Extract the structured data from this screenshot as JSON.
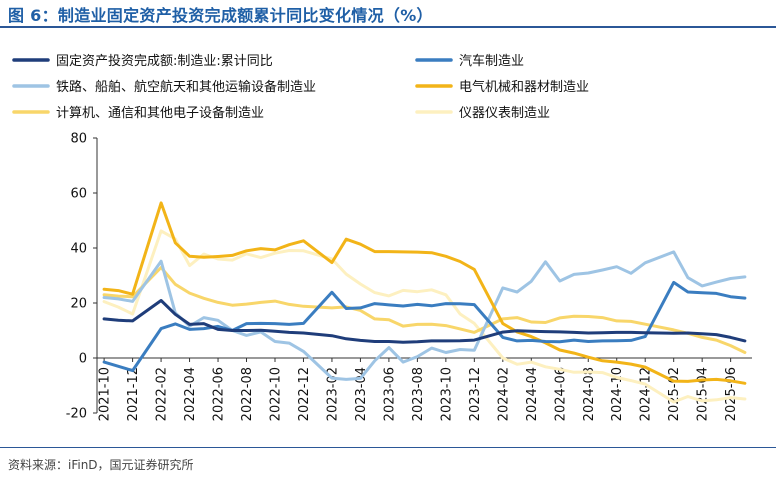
{
  "figure": {
    "title": "图 6：制造业固定资产投资完成额累计同比变化情况（%）",
    "source": "资料来源：iFinD，国元证券研究所"
  },
  "chart_data": {
    "type": "line",
    "ylim": [
      -20,
      80
    ],
    "yticks": [
      -20,
      0,
      20,
      40,
      60,
      80
    ],
    "xlabel": "",
    "ylabel": "",
    "grid": false,
    "legend_position": "top",
    "x_tick_labels": [
      "2021-10",
      "2021-12",
      "2022-02",
      "2022-04",
      "2022-06",
      "2022-08",
      "2022-10",
      "2022-12",
      "2023-02",
      "2023-04",
      "2023-06",
      "2023-08",
      "2023-10",
      "2023-12",
      "2024-02",
      "2024-04",
      "2024-06",
      "2024-08",
      "2024-10",
      "2024-12",
      "2025-02",
      "2025-04",
      "2025-06"
    ],
    "x": [
      "2021-10",
      "2021-11",
      "2021-12",
      "2022-01",
      "2022-02",
      "2022-03",
      "2022-04",
      "2022-05",
      "2022-06",
      "2022-07",
      "2022-08",
      "2022-09",
      "2022-10",
      "2022-11",
      "2022-12",
      "2023-01",
      "2023-02",
      "2023-03",
      "2023-04",
      "2023-05",
      "2023-06",
      "2023-07",
      "2023-08",
      "2023-09",
      "2023-10",
      "2023-11",
      "2023-12",
      "2024-01",
      "2024-02",
      "2024-03",
      "2024-04",
      "2024-05",
      "2024-06",
      "2024-07",
      "2024-08",
      "2024-09",
      "2024-10",
      "2024-11",
      "2024-12",
      "2025-01",
      "2025-02",
      "2025-03",
      "2025-04",
      "2025-05",
      "2025-06",
      "2025-07"
    ],
    "series": [
      {
        "name": "固定资产投资完成额:制造业:累计同比",
        "color": "#1f3d7a",
        "values": [
          14.2,
          13.7,
          13.5,
          null,
          20.9,
          15.9,
          12.2,
          12.5,
          10.4,
          10.0,
          10.0,
          10.1,
          9.7,
          9.3,
          9.1,
          null,
          8.1,
          7.0,
          6.4,
          6.0,
          6.0,
          5.7,
          5.9,
          6.2,
          6.2,
          6.3,
          6.5,
          null,
          9.4,
          9.9,
          9.7,
          9.6,
          9.5,
          9.3,
          9.1,
          9.2,
          9.3,
          9.3,
          9.2,
          null,
          9.0,
          9.1,
          8.8,
          8.5,
          7.5,
          6.2
        ]
      },
      {
        "name": "汽车制造业",
        "color": "#3a7dc0",
        "values": [
          -1.5,
          -3.0,
          -4.6,
          null,
          10.7,
          12.4,
          10.4,
          10.7,
          11.5,
          10.0,
          12.5,
          12.6,
          12.5,
          12.2,
          12.6,
          null,
          23.9,
          18.0,
          18.2,
          19.8,
          19.3,
          18.9,
          19.5,
          19.0,
          19.8,
          19.7,
          19.4,
          null,
          7.5,
          6.2,
          6.4,
          6.0,
          5.9,
          6.5,
          6.0,
          6.2,
          6.3,
          6.4,
          7.8,
          null,
          27.5,
          24.0,
          23.7,
          23.5,
          22.3,
          21.8
        ]
      },
      {
        "name": "铁路、船舶、航空航天和其他运输设备制造业",
        "color": "#9ec4e4",
        "values": [
          22.0,
          21.5,
          20.6,
          null,
          35.2,
          16.4,
          11.6,
          14.7,
          13.7,
          10.0,
          8.2,
          9.5,
          6.0,
          5.4,
          2.4,
          null,
          -7.3,
          -7.8,
          -7.4,
          -1.0,
          3.8,
          -1.5,
          0.5,
          3.6,
          2.0,
          3.1,
          2.8,
          null,
          25.5,
          24.0,
          27.9,
          35.0,
          28.0,
          30.4,
          30.9,
          32.0,
          33.2,
          30.8,
          34.6,
          null,
          38.6,
          29.2,
          26.2,
          27.6,
          28.9,
          29.5
        ]
      },
      {
        "name": "电气机械和器材制造业",
        "color": "#f2b418",
        "values": [
          25.0,
          24.5,
          23.2,
          null,
          56.4,
          41.9,
          37.0,
          36.6,
          36.9,
          37.3,
          39.0,
          39.8,
          39.3,
          41.2,
          42.6,
          null,
          34.7,
          43.2,
          41.4,
          38.7,
          38.7,
          38.6,
          38.5,
          38.3,
          37.0,
          35.1,
          32.2,
          null,
          12.5,
          9.5,
          7.8,
          5.5,
          2.9,
          1.8,
          0.3,
          -1.0,
          -1.5,
          -2.2,
          -3.3,
          null,
          -8.4,
          -8.5,
          -8.0,
          -7.8,
          -8.3,
          -9.2
        ]
      },
      {
        "name": "计算机、通信和其他电子设备制造业",
        "color": "#f8d66a",
        "values": [
          23.0,
          22.5,
          22.3,
          null,
          32.9,
          26.8,
          23.6,
          21.7,
          20.2,
          19.2,
          19.6,
          20.2,
          20.7,
          19.5,
          18.8,
          null,
          18.2,
          18.6,
          17.3,
          14.2,
          13.9,
          11.6,
          12.2,
          12.3,
          11.8,
          10.6,
          9.3,
          null,
          14.2,
          14.7,
          13.1,
          12.9,
          14.6,
          15.2,
          15.1,
          14.7,
          13.5,
          13.3,
          12.3,
          null,
          10.2,
          9.0,
          7.5,
          6.5,
          4.5,
          2.0
        ]
      },
      {
        "name": "仪器仪表制造业",
        "color": "#fdf0c0",
        "values": [
          20.5,
          18.5,
          16.0,
          null,
          46.2,
          43.3,
          33.6,
          37.8,
          36.0,
          35.6,
          37.9,
          36.5,
          38.1,
          39.1,
          39.0,
          null,
          36.0,
          30.5,
          26.9,
          23.8,
          22.6,
          24.6,
          24.1,
          24.8,
          23.0,
          16.0,
          12.6,
          null,
          0.0,
          -2.3,
          -1.5,
          -3.2,
          -4.1,
          -5.2,
          -5.1,
          -5.3,
          -7.1,
          -8.2,
          -9.5,
          null,
          -16.0,
          -14.0,
          -15.6,
          -15.2,
          -14.4,
          -14.9
        ]
      }
    ]
  }
}
